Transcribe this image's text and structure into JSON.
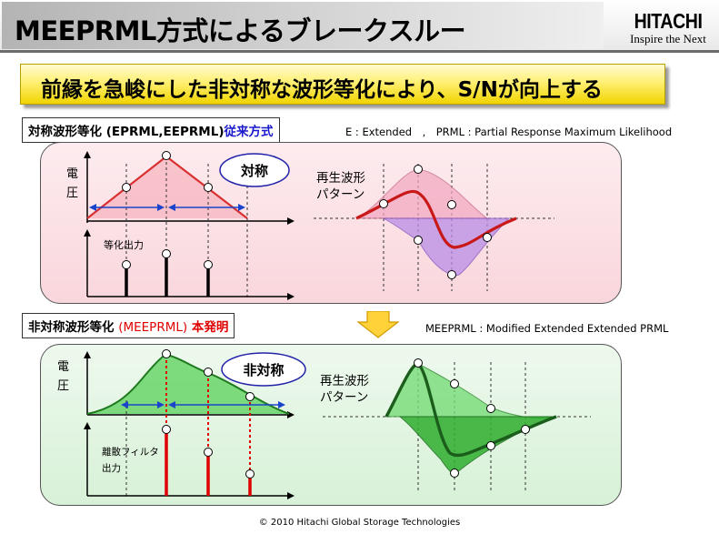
{
  "header": {
    "title": "MEEPRML方式によるブレークスルー",
    "logo_main": "HITACHI",
    "logo_tagline": "Inspire the Next"
  },
  "banner": {
    "text": "前縁を急峻にした非対称な波形等化により、S/Nが向上する"
  },
  "section1": {
    "label_prefix": "対称波形等化 (EPRML,EEPRML)",
    "label_highlight": "従来方式",
    "note": "E : Extended　,　PRML : Partial Response Maximum Likelihood",
    "axis_label": "電圧",
    "axis_label_1": "電",
    "axis_label_2": "圧",
    "badge": "対称",
    "output_label": "等化出力",
    "wave_label_line1": "再生波形",
    "wave_label_line2": "パターン"
  },
  "section2": {
    "label_prefix": "非対称波形等化",
    "label_paren": "(MEEPRML)",
    "label_highlight": "本発明",
    "note": "MEEPRML : Modified Extended Extended PRML",
    "axis_label_1": "電",
    "axis_label_2": "圧",
    "badge": "非対称",
    "output_label_line1": "離散フィルタ",
    "output_label_line2": "出力",
    "wave_label_line1": "再生波形",
    "wave_label_line2": "パターン"
  },
  "footer": {
    "text": "© 2010 Hitachi Global Storage Technologies"
  },
  "colors": {
    "pink_panel": "#f9d6dc",
    "green_panel": "#d7f1d7",
    "conventional_highlight": "#1a1acc",
    "invention_highlight": "#e00000",
    "banner_yellow": "#fff074"
  }
}
